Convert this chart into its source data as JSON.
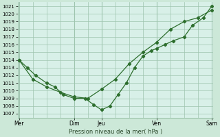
{
  "xlabel": "Pression niveau de la mer( hPa )",
  "bg_color": "#cce8d8",
  "plot_bg_color": "#d8f0e8",
  "grid_color": "#9ec4ae",
  "line_color": "#2d6e2d",
  "ylim": [
    1006.5,
    1021.5
  ],
  "yticks": [
    1007,
    1008,
    1009,
    1010,
    1011,
    1012,
    1013,
    1014,
    1015,
    1016,
    1017,
    1018,
    1019,
    1020,
    1021
  ],
  "xlim": [
    -0.05,
    7.05
  ],
  "xtick_positions": [
    0,
    2,
    3,
    5,
    7
  ],
  "xtick_labels": [
    "Mer",
    "Dim",
    "Jeu",
    "Ven",
    "Sam"
  ],
  "line1_x": [
    0.0,
    0.3,
    0.6,
    1.0,
    1.3,
    1.6,
    2.0,
    2.4,
    2.7,
    3.0,
    3.3,
    3.6,
    3.9,
    4.2,
    4.5,
    4.8,
    5.0,
    5.3,
    5.6,
    6.0,
    6.3,
    6.7,
    7.0
  ],
  "line1_y": [
    1014.0,
    1013.0,
    1012.0,
    1011.0,
    1010.5,
    1009.5,
    1009.0,
    1009.0,
    1008.2,
    1007.5,
    1008.0,
    1009.5,
    1011.0,
    1013.0,
    1014.5,
    1015.2,
    1015.5,
    1016.0,
    1016.5,
    1017.0,
    1018.5,
    1019.5,
    1021.0
  ],
  "line2_x": [
    0.0,
    0.5,
    1.0,
    1.5,
    2.0,
    2.5,
    3.0,
    3.5,
    4.0,
    4.5,
    5.0,
    5.5,
    6.0,
    6.5,
    7.0
  ],
  "line2_y": [
    1014.0,
    1011.5,
    1010.5,
    1009.8,
    1009.2,
    1009.0,
    1010.2,
    1011.5,
    1013.5,
    1015.0,
    1016.3,
    1018.0,
    1019.0,
    1019.5,
    1020.5
  ]
}
